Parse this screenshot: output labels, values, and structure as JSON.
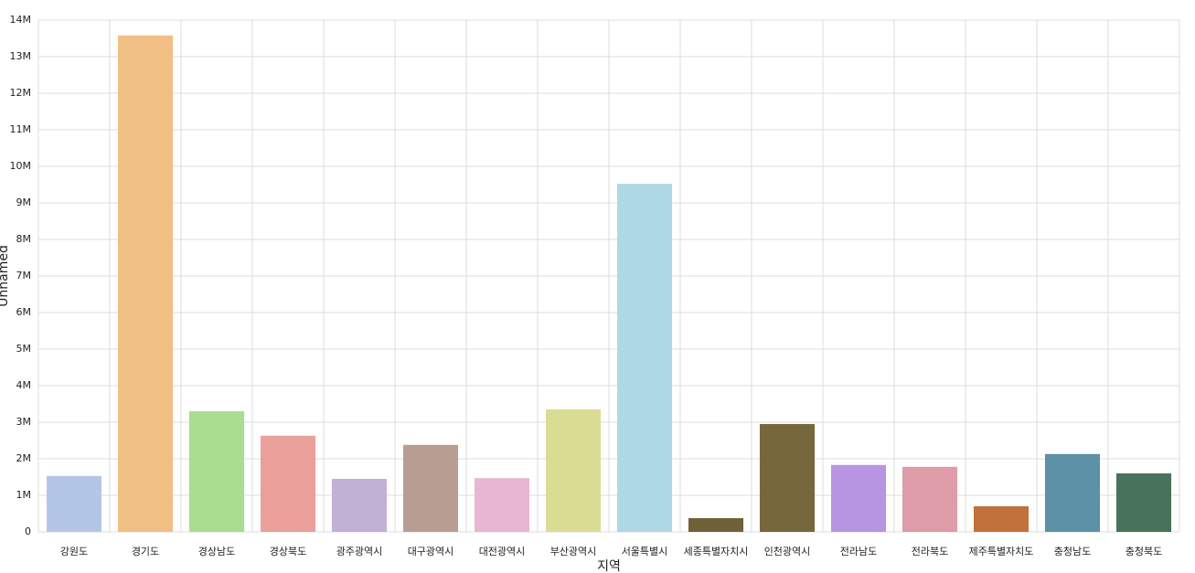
{
  "chart_data": {
    "type": "bar",
    "x_label": "지역",
    "y_label": "Unnamed",
    "categories": [
      "강원도",
      "경기도",
      "경상남도",
      "경상북도",
      "광주광역시",
      "대구광역시",
      "대전광역시",
      "부산광역시",
      "서울특별시",
      "세종특별자치시",
      "인천광역시",
      "전라남도",
      "전라북도",
      "제주특별자치도",
      "충청남도",
      "충청북도"
    ],
    "values": [
      1530000,
      13580000,
      3300000,
      2630000,
      1450000,
      2380000,
      1470000,
      3350000,
      9520000,
      375000,
      2950000,
      1830000,
      1780000,
      700000,
      2130000,
      1600000
    ],
    "colors": [
      "#b4c6e7",
      "#f0bf84",
      "#a9dd8f",
      "#e9a09a",
      "#c0b1d5",
      "#b89d93",
      "#e8b6d2",
      "#dbdc94",
      "#aed8e3",
      "#6f6138",
      "#76683c",
      "#b795e2",
      "#dd9ca8",
      "#c1713a",
      "#5c91a6",
      "#46735a"
    ],
    "ylim": [
      0,
      14000000
    ],
    "yticks": [
      0,
      {
        "value": 1000000,
        "label": "1M"
      },
      {
        "value": 2000000,
        "label": "2M"
      },
      {
        "value": 3000000,
        "label": "3M"
      },
      {
        "value": 4000000,
        "label": "4M"
      },
      {
        "value": 5000000,
        "label": "5M"
      },
      {
        "value": 6000000,
        "label": "6M"
      },
      {
        "value": 7000000,
        "label": "7M"
      },
      {
        "value": 8000000,
        "label": "8M"
      },
      {
        "value": 9000000,
        "label": "9M"
      },
      {
        "value": 10000000,
        "label": "10M"
      },
      {
        "value": 11000000,
        "label": "11M"
      },
      {
        "value": 12000000,
        "label": "12M"
      },
      {
        "value": 13000000,
        "label": "13M"
      },
      {
        "value": 14000000,
        "label": "14M"
      }
    ],
    "grid": true
  }
}
